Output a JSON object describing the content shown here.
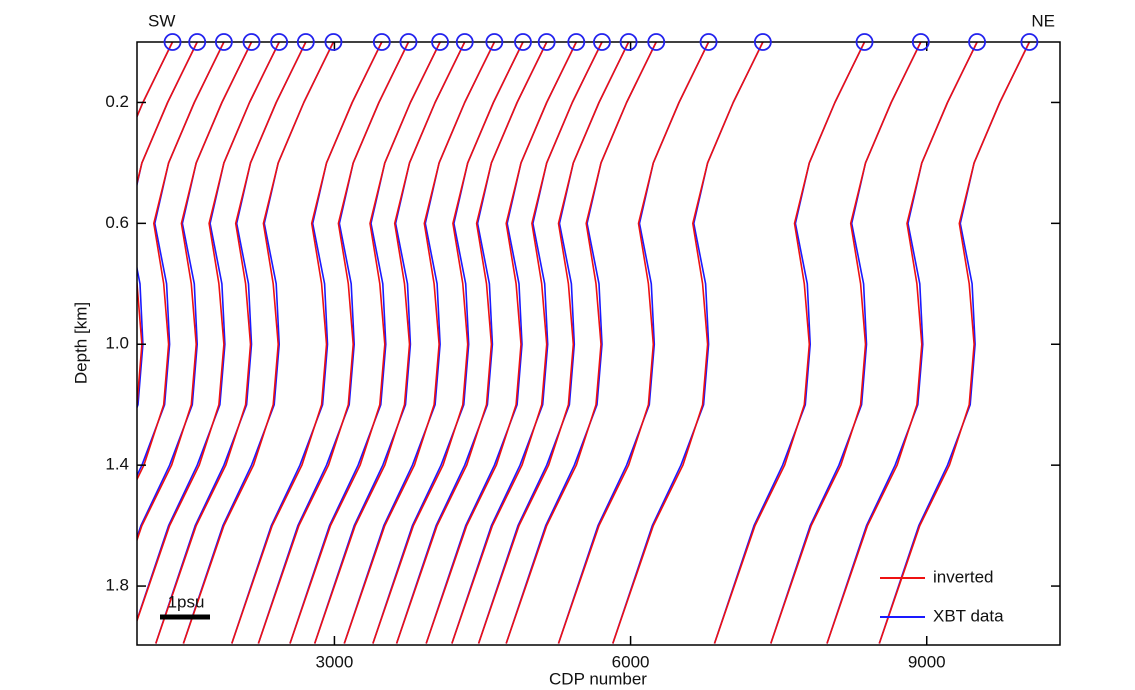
{
  "chart_data": {
    "type": "profiles",
    "xlabel": "CDP number",
    "ylabel": "Depth [km]",
    "xlim": [
      1000,
      10350
    ],
    "ylim": [
      0,
      1.995
    ],
    "invert_y": true,
    "xticks": [
      3000,
      6000,
      9000
    ],
    "yticks": [
      0.2,
      0.6,
      {
        "value": 1,
        "label": "1.0"
      },
      1.4,
      1.8
    ],
    "legend": "lower right",
    "annotations": [
      "SW",
      "NE",
      "1psu"
    ],
    "depths": [
      0,
      0.1,
      0.2,
      0.4,
      0.6,
      0.8,
      1.0,
      1.2,
      1.4,
      1.6,
      1.99
    ],
    "stations": [
      1360,
      1610,
      1880,
      2160,
      2440,
      2710,
      2990,
      3480,
      3750,
      4070,
      4320,
      4620,
      4910,
      5150,
      5450,
      5710,
      5980,
      6260,
      6790,
      7340,
      8370,
      8940,
      9510,
      10040
    ],
    "station_color": "#2222ee",
    "series": [
      {
        "name": "XBT data",
        "color": "#1a1aff",
        "profiles": [
          [
            1360,
            1210,
            1060,
            800,
            660,
            780,
            810,
            760,
            530,
            240,
            -160
          ],
          [
            1610,
            1460,
            1310,
            1050,
            910,
            1030,
            1060,
            1010,
            780,
            490,
            90
          ],
          [
            1880,
            1730,
            1580,
            1320,
            1180,
            1300,
            1330,
            1280,
            1050,
            760,
            360
          ],
          [
            2160,
            2010,
            1860,
            1600,
            1460,
            1580,
            1610,
            1560,
            1330,
            1040,
            640
          ],
          [
            2440,
            2290,
            2140,
            1880,
            1740,
            1860,
            1890,
            1840,
            1610,
            1320,
            920
          ],
          [
            2710,
            2560,
            2410,
            2150,
            2010,
            2130,
            2160,
            2110,
            1880,
            1590,
            1190
          ],
          [
            2990,
            2840,
            2690,
            2430,
            2290,
            2410,
            2440,
            2390,
            2160,
            1870,
            1470
          ],
          [
            3480,
            3330,
            3180,
            2920,
            2780,
            2900,
            2930,
            2880,
            2650,
            2360,
            1960
          ],
          [
            3750,
            3600,
            3450,
            3190,
            3050,
            3170,
            3200,
            3150,
            2920,
            2630,
            2230
          ],
          [
            4070,
            3920,
            3770,
            3510,
            3370,
            3490,
            3520,
            3470,
            3240,
            2950,
            2550
          ],
          [
            4320,
            4170,
            4020,
            3760,
            3620,
            3740,
            3770,
            3720,
            3490,
            3200,
            2800
          ],
          [
            4620,
            4470,
            4320,
            4060,
            3920,
            4040,
            4070,
            4020,
            3790,
            3500,
            3100
          ],
          [
            4910,
            4760,
            4610,
            4350,
            4210,
            4330,
            4360,
            4310,
            4080,
            3790,
            3390
          ],
          [
            5150,
            5000,
            4850,
            4590,
            4450,
            4570,
            4600,
            4550,
            4320,
            4030,
            3630
          ],
          [
            5450,
            5300,
            5150,
            4890,
            4750,
            4870,
            4900,
            4850,
            4620,
            4330,
            3930
          ],
          [
            5710,
            5560,
            5410,
            5150,
            5010,
            5130,
            5160,
            5110,
            4880,
            4590,
            4190
          ],
          [
            5980,
            5830,
            5680,
            5420,
            5280,
            5400,
            5430,
            5380,
            5150,
            4860,
            4460
          ],
          [
            6260,
            6110,
            5960,
            5700,
            5560,
            5680,
            5710,
            5660,
            5430,
            5140,
            4740
          ],
          [
            6790,
            6640,
            6490,
            6230,
            6090,
            6210,
            6240,
            6190,
            5960,
            5670,
            5270
          ],
          [
            7340,
            7190,
            7040,
            6780,
            6640,
            6760,
            6790,
            6740,
            6510,
            6220,
            5820
          ],
          [
            8370,
            8220,
            8070,
            7810,
            7670,
            7790,
            7820,
            7770,
            7540,
            7250,
            6850
          ],
          [
            8940,
            8790,
            8640,
            8380,
            8240,
            8360,
            8390,
            8340,
            8110,
            7820,
            7420
          ],
          [
            9510,
            9360,
            9210,
            8950,
            8810,
            8930,
            8960,
            8910,
            8680,
            8390,
            7990
          ],
          [
            10040,
            9890,
            9740,
            9480,
            9340,
            9460,
            9490,
            9440,
            9210,
            8920,
            8520
          ]
        ]
      },
      {
        "name": "inverted",
        "color": "#ee1111",
        "profiles": [
          [
            1360,
            1210,
            1060,
            800,
            650,
            750,
            800,
            750,
            550,
            250,
            -160
          ],
          [
            1610,
            1460,
            1310,
            1050,
            900,
            1000,
            1050,
            1000,
            800,
            500,
            90
          ],
          [
            1880,
            1730,
            1580,
            1320,
            1170,
            1270,
            1320,
            1270,
            1070,
            770,
            360
          ],
          [
            2160,
            2010,
            1860,
            1600,
            1450,
            1550,
            1600,
            1550,
            1350,
            1050,
            640
          ],
          [
            2440,
            2290,
            2140,
            1880,
            1730,
            1830,
            1880,
            1830,
            1630,
            1330,
            920
          ],
          [
            2710,
            2560,
            2410,
            2150,
            2000,
            2100,
            2150,
            2100,
            1900,
            1600,
            1190
          ],
          [
            2990,
            2840,
            2690,
            2430,
            2280,
            2380,
            2430,
            2380,
            2180,
            1880,
            1470
          ],
          [
            3480,
            3330,
            3180,
            2920,
            2770,
            2870,
            2920,
            2870,
            2670,
            2370,
            1960
          ],
          [
            3750,
            3600,
            3450,
            3190,
            3040,
            3140,
            3190,
            3140,
            2940,
            2640,
            2230
          ],
          [
            4070,
            3920,
            3770,
            3510,
            3360,
            3460,
            3510,
            3460,
            3260,
            2960,
            2550
          ],
          [
            4320,
            4170,
            4020,
            3760,
            3610,
            3710,
            3760,
            3710,
            3510,
            3210,
            2800
          ],
          [
            4620,
            4470,
            4320,
            4060,
            3910,
            4010,
            4060,
            4010,
            3810,
            3510,
            3100
          ],
          [
            4910,
            4760,
            4610,
            4350,
            4200,
            4300,
            4350,
            4300,
            4100,
            3800,
            3390
          ],
          [
            5150,
            5000,
            4850,
            4590,
            4440,
            4540,
            4590,
            4540,
            4340,
            4040,
            3630
          ],
          [
            5450,
            5300,
            5150,
            4890,
            4740,
            4840,
            4890,
            4840,
            4640,
            4340,
            3930
          ],
          [
            5710,
            5560,
            5410,
            5150,
            5000,
            5100,
            5150,
            5100,
            4900,
            4600,
            4190
          ],
          [
            5980,
            5830,
            5680,
            5420,
            5270,
            5370,
            5420,
            5370,
            5170,
            4870,
            4460
          ],
          [
            6260,
            6110,
            5960,
            5700,
            5550,
            5650,
            5700,
            5650,
            5450,
            5150,
            4740
          ],
          [
            6790,
            6640,
            6490,
            6230,
            6080,
            6180,
            6230,
            6180,
            5980,
            5680,
            5270
          ],
          [
            7340,
            7190,
            7040,
            6780,
            6630,
            6730,
            6780,
            6730,
            6530,
            6230,
            5820
          ],
          [
            8370,
            8220,
            8070,
            7810,
            7660,
            7760,
            7810,
            7760,
            7560,
            7260,
            6850
          ],
          [
            8940,
            8790,
            8640,
            8380,
            8230,
            8330,
            8380,
            8330,
            8130,
            7830,
            7420
          ],
          [
            9510,
            9360,
            9210,
            8950,
            8800,
            8900,
            8950,
            8900,
            8700,
            8400,
            7990
          ],
          [
            10040,
            9890,
            9740,
            9480,
            9330,
            9430,
            9480,
            9430,
            9230,
            8930,
            8520
          ]
        ]
      }
    ]
  }
}
